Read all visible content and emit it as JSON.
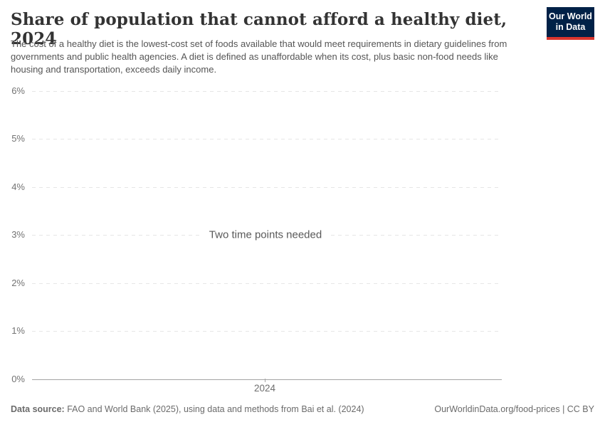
{
  "branding": {
    "logo_line1": "Our World",
    "logo_line2": "in Data",
    "logo_bg_color": "#002147",
    "logo_stripe_color": "#d8352e"
  },
  "chart_data": {
    "type": "line",
    "title": "Share of population that cannot afford a healthy diet, 2024",
    "subtitle": "The cost of a healthy diet is the lowest-cost set of foods available that would meet requirements in dietary guidelines from governments and public health agencies. A diet is defined as unaffordable when its cost, plus basic non-food needs like housing and transportation, exceeds daily income.",
    "series": [],
    "message": "Two time points needed",
    "x_tick_labels": [
      "2024"
    ],
    "y_tick_labels": [
      "6%",
      "5%",
      "4%",
      "3%",
      "2%",
      "1%",
      "0%"
    ],
    "ylim": [
      0,
      6
    ],
    "xlabel": "",
    "ylabel": "",
    "grid": "horizontal-dashed",
    "legend": "none"
  },
  "footer": {
    "datasource_label": "Data source:",
    "datasource_text": " FAO and World Bank (2025), using data and methods from Bai et al. (2024)",
    "link_text": "OurWorldinData.org/food-prices | CC BY"
  }
}
